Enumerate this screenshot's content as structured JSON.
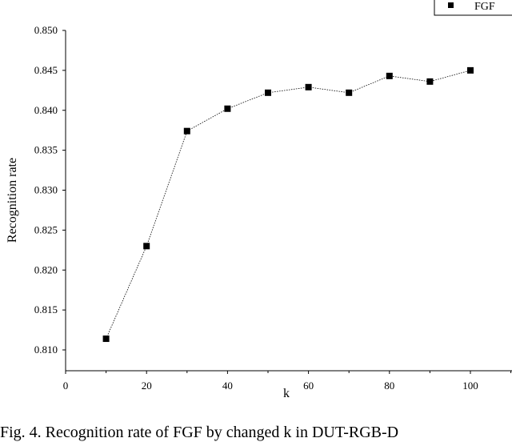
{
  "chart_data": {
    "type": "line",
    "xlabel": "k",
    "ylabel": "Recognition rate",
    "xlim": [
      0,
      100
    ],
    "ylim": [
      0.81,
      0.85
    ],
    "x_ticks": [
      "0",
      "20",
      "40",
      "60",
      "80",
      "100"
    ],
    "y_ticks": [
      "0.810",
      "0.815",
      "0.820",
      "0.825",
      "0.830",
      "0.835",
      "0.840",
      "0.845",
      "0.850"
    ],
    "legend_position": "top-right",
    "marker": "square",
    "line_style": "dotted",
    "series": [
      {
        "name": "FGF",
        "x": [
          10,
          20,
          30,
          40,
          50,
          60,
          70,
          80,
          90,
          100
        ],
        "y": [
          0.8114,
          0.823,
          0.8374,
          0.8402,
          0.8422,
          0.8429,
          0.8422,
          0.8443,
          0.8436,
          0.845
        ]
      }
    ],
    "grid": false
  },
  "caption": "Fig. 4. Recognition rate of FGF by changed k in DUT-RGB-D"
}
